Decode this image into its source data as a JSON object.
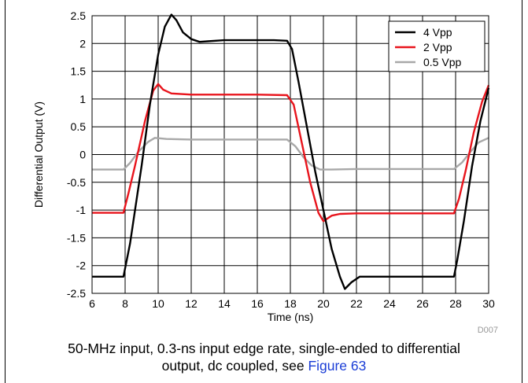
{
  "chart_data": {
    "type": "line",
    "title": "",
    "xlabel": "Time (ns)",
    "ylabel": "Differential Output (V)",
    "xlim": [
      6,
      30
    ],
    "ylim": [
      -2.5,
      2.5
    ],
    "xticks": [
      6,
      8,
      10,
      12,
      14,
      16,
      18,
      20,
      22,
      24,
      26,
      28,
      30
    ],
    "yticks": [
      -2.5,
      -2,
      -1.5,
      -1,
      -0.5,
      0,
      0.5,
      1,
      1.5,
      2,
      2.5
    ],
    "grid": true,
    "legend": "top-right",
    "figure_id": "D007",
    "series": [
      {
        "name": "4 Vpp",
        "color": "#000000",
        "points": [
          [
            6,
            -2.2
          ],
          [
            7,
            -2.2
          ],
          [
            7.9,
            -2.2
          ],
          [
            8.1,
            -1.9
          ],
          [
            8.3,
            -1.6
          ],
          [
            8.6,
            -1.0
          ],
          [
            9,
            -0.2
          ],
          [
            9.5,
            0.9
          ],
          [
            10,
            1.8
          ],
          [
            10.4,
            2.3
          ],
          [
            10.8,
            2.52
          ],
          [
            11.1,
            2.42
          ],
          [
            11.5,
            2.2
          ],
          [
            12,
            2.08
          ],
          [
            12.5,
            2.03
          ],
          [
            13,
            2.04
          ],
          [
            14,
            2.06
          ],
          [
            15,
            2.06
          ],
          [
            16,
            2.06
          ],
          [
            17,
            2.06
          ],
          [
            17.8,
            2.05
          ],
          [
            18.1,
            1.9
          ],
          [
            18.5,
            1.3
          ],
          [
            19,
            0.5
          ],
          [
            19.5,
            -0.3
          ],
          [
            20,
            -1.0
          ],
          [
            20.5,
            -1.7
          ],
          [
            21,
            -2.2
          ],
          [
            21.3,
            -2.42
          ],
          [
            21.7,
            -2.3
          ],
          [
            22.2,
            -2.2
          ],
          [
            23,
            -2.2
          ],
          [
            24,
            -2.2
          ],
          [
            25,
            -2.2
          ],
          [
            26,
            -2.2
          ],
          [
            27,
            -2.2
          ],
          [
            27.9,
            -2.2
          ],
          [
            28.1,
            -1.9
          ],
          [
            28.5,
            -1.2
          ],
          [
            29,
            -0.2
          ],
          [
            29.5,
            0.6
          ],
          [
            30,
            1.2
          ]
        ]
      },
      {
        "name": "2 Vpp",
        "color": "#e8141c",
        "points": [
          [
            6,
            -1.05
          ],
          [
            7,
            -1.05
          ],
          [
            7.9,
            -1.05
          ],
          [
            8.2,
            -0.7
          ],
          [
            8.6,
            -0.2
          ],
          [
            9.2,
            0.6
          ],
          [
            9.7,
            1.15
          ],
          [
            10,
            1.27
          ],
          [
            10.3,
            1.17
          ],
          [
            10.8,
            1.1
          ],
          [
            12,
            1.08
          ],
          [
            14,
            1.08
          ],
          [
            16,
            1.08
          ],
          [
            17.8,
            1.07
          ],
          [
            18.2,
            0.9
          ],
          [
            18.7,
            0.2
          ],
          [
            19.2,
            -0.5
          ],
          [
            19.7,
            -1.05
          ],
          [
            20,
            -1.2
          ],
          [
            20.5,
            -1.1
          ],
          [
            21,
            -1.07
          ],
          [
            22,
            -1.06
          ],
          [
            24,
            -1.06
          ],
          [
            26,
            -1.06
          ],
          [
            27.9,
            -1.06
          ],
          [
            28.2,
            -0.8
          ],
          [
            28.6,
            -0.3
          ],
          [
            29.1,
            0.4
          ],
          [
            29.6,
            0.95
          ],
          [
            30,
            1.25
          ]
        ]
      },
      {
        "name": "0.5 Vpp",
        "color": "#a8a8a8",
        "points": [
          [
            6,
            -0.27
          ],
          [
            7,
            -0.27
          ],
          [
            7.9,
            -0.27
          ],
          [
            8.3,
            -0.15
          ],
          [
            8.8,
            0.05
          ],
          [
            9.4,
            0.23
          ],
          [
            9.8,
            0.3
          ],
          [
            10.5,
            0.28
          ],
          [
            12,
            0.27
          ],
          [
            14,
            0.27
          ],
          [
            16,
            0.27
          ],
          [
            17.8,
            0.27
          ],
          [
            18.3,
            0.15
          ],
          [
            18.8,
            -0.05
          ],
          [
            19.3,
            -0.2
          ],
          [
            19.8,
            -0.27
          ],
          [
            20.5,
            -0.27
          ],
          [
            22,
            -0.26
          ],
          [
            24,
            -0.26
          ],
          [
            26,
            -0.26
          ],
          [
            27.9,
            -0.26
          ],
          [
            28.4,
            -0.14
          ],
          [
            28.9,
            0.05
          ],
          [
            29.4,
            0.22
          ],
          [
            30,
            0.3
          ]
        ]
      }
    ]
  },
  "caption": {
    "line1": "50-MHz input, 0.3-ns input edge rate, single-ended to differential",
    "line2": "output, dc coupled, see ",
    "link": "Figure 63"
  }
}
